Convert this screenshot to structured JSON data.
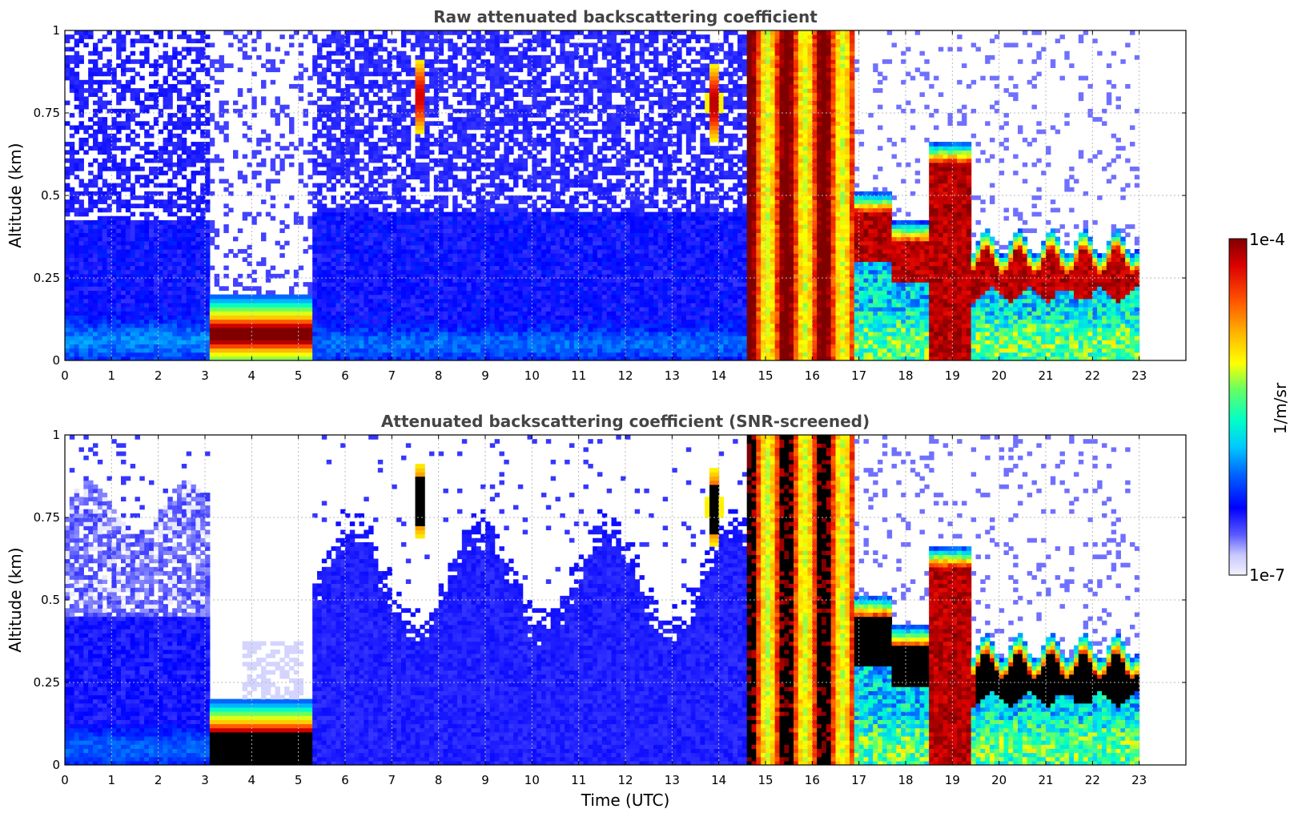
{
  "chart_data": [
    {
      "type": "heatmap",
      "title": "Raw attenuated backscattering coefficient",
      "xlabel": "",
      "ylabel": "Altitude (km)",
      "xlim": [
        0,
        24
      ],
      "ylim": [
        0,
        1
      ],
      "x_ticks": [
        "0",
        "1",
        "2",
        "3",
        "4",
        "5",
        "6",
        "7",
        "8",
        "9",
        "10",
        "11",
        "12",
        "13",
        "14",
        "15",
        "16",
        "17",
        "18",
        "19",
        "20",
        "21",
        "22",
        "23"
      ],
      "y_ticks": [
        "0",
        "0.25",
        "0.5",
        "0.75",
        "1"
      ],
      "grid": true,
      "data_time_range": [
        0,
        23
      ],
      "layers": [
        {
          "t_start": 0,
          "t_end": 3.1,
          "feature": "noise background, boundary layer below ~0.4 km",
          "level": "low"
        },
        {
          "t_start": 3.15,
          "t_end": 5.3,
          "feature": "dense low layer 0-0.15 km",
          "level": "max"
        },
        {
          "t_start": 7.4,
          "t_end": 8.1,
          "feature": "thin plumes 0.65-1.0 km",
          "level": "high"
        },
        {
          "t_start": 13.3,
          "t_end": 14.2,
          "feature": "thin plumes 0.65-1.0 km",
          "level": "high"
        },
        {
          "t_start": 14.6,
          "t_end": 16.9,
          "feature": "deep cloud/precipitation 0-1 km",
          "level": "max"
        },
        {
          "t_start": 16.9,
          "t_end": 17.7,
          "feature": "layer 0.3-0.45 km",
          "level": "high"
        },
        {
          "t_start": 17.7,
          "t_end": 18.5,
          "feature": "layer 0.25-0.35 km",
          "level": "high"
        },
        {
          "t_start": 18.5,
          "t_end": 19.4,
          "feature": "deep column 0-0.6 km",
          "level": "max"
        },
        {
          "t_start": 19.5,
          "t_end": 22.95,
          "feature": "stratiform layer 0.2-0.3 km",
          "level": "max"
        }
      ]
    },
    {
      "type": "heatmap",
      "title": "Attenuated backscattering coefficient (SNR-screened)",
      "xlabel": "Time (UTC)",
      "ylabel": "Altitude (km)",
      "xlim": [
        0,
        24
      ],
      "ylim": [
        0,
        1
      ],
      "x_ticks": [
        "0",
        "1",
        "2",
        "3",
        "4",
        "5",
        "6",
        "7",
        "8",
        "9",
        "10",
        "11",
        "12",
        "13",
        "14",
        "15",
        "16",
        "17",
        "18",
        "19",
        "20",
        "21",
        "22",
        "23"
      ],
      "y_ticks": [
        "0",
        "0.25",
        "0.5",
        "0.75",
        "1"
      ],
      "grid": true,
      "data_time_range": [
        0,
        23
      ],
      "saturated_color": "#000000",
      "layers": [
        {
          "t_start": 0,
          "t_end": 3.1,
          "feature": "screened aerosol up to ~0.85 km",
          "level": "low"
        },
        {
          "t_start": 3.15,
          "t_end": 5.3,
          "feature": "dense low layer 0-0.15 km",
          "level": "saturated"
        },
        {
          "t_start": 5.4,
          "t_end": 14.6,
          "feature": "screened aerosol 0-0.6 km",
          "level": "low"
        },
        {
          "t_start": 14.6,
          "t_end": 16.9,
          "feature": "deep cloud/precipitation 0-1 km",
          "level": "saturated"
        },
        {
          "t_start": 16.9,
          "t_end": 18.5,
          "feature": "layer 0.25-0.45 km",
          "level": "saturated"
        },
        {
          "t_start": 18.5,
          "t_end": 19.4,
          "feature": "deep column 0-0.6 km",
          "level": "max"
        },
        {
          "t_start": 19.5,
          "t_end": 22.95,
          "feature": "stratiform layer 0.2-0.3 km",
          "level": "saturated"
        }
      ]
    }
  ],
  "colorbar": {
    "label": "1/m/sr",
    "max_label": "1e-4",
    "min_label": "1e-7",
    "colors": [
      "#f2f2ff",
      "#c8c8ff",
      "#5a5aff",
      "#0000ff",
      "#0064ff",
      "#00c8ff",
      "#00ffc8",
      "#64ff64",
      "#ffff00",
      "#ffb400",
      "#ff5000",
      "#dc0000",
      "#800000"
    ]
  }
}
